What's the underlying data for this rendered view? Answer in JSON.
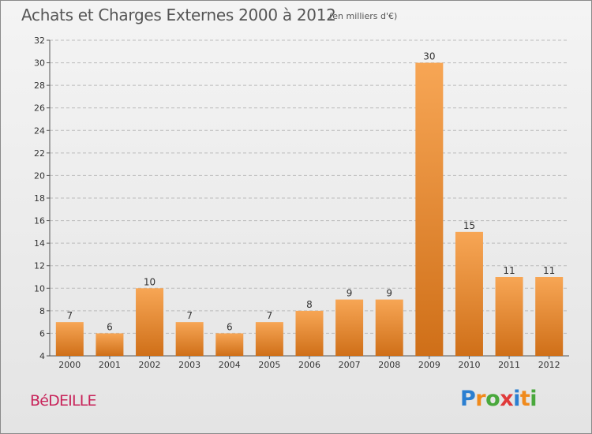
{
  "header": {
    "title": "Achats et Charges Externes 2000 à 2012",
    "subtitle": "(en milliers d'€)"
  },
  "footer": {
    "commune": "BéDEILLE",
    "logo_letters": [
      "P",
      "r",
      "o",
      "x",
      "i",
      "t",
      "i"
    ],
    "logo_colors": [
      "#2b7fd1",
      "#f08a1c",
      "#49a83c",
      "#e03a3a",
      "#2b7fd1",
      "#f08a1c",
      "#49a83c"
    ]
  },
  "colors": {
    "bar_top": "#f7a655",
    "bar_bottom": "#cf6f18",
    "grid": "#bbbbbb",
    "axis": "#555555",
    "commune": "#c8245a"
  },
  "chart_data": {
    "type": "bar",
    "title": "Achats et Charges Externes 2000 à 2012",
    "subtitle": "(en milliers d'€)",
    "xlabel": "",
    "ylabel": "",
    "categories": [
      "2000",
      "2001",
      "2002",
      "2003",
      "2004",
      "2005",
      "2006",
      "2007",
      "2008",
      "2009",
      "2010",
      "2011",
      "2012"
    ],
    "values": [
      7,
      6,
      10,
      7,
      6,
      7,
      8,
      9,
      9,
      30,
      15,
      11,
      11
    ],
    "ylim": [
      4,
      32
    ],
    "yticks": [
      4,
      6,
      8,
      10,
      12,
      14,
      16,
      18,
      20,
      22,
      24,
      26,
      28,
      30,
      32
    ],
    "grid": true,
    "legend": "none"
  }
}
